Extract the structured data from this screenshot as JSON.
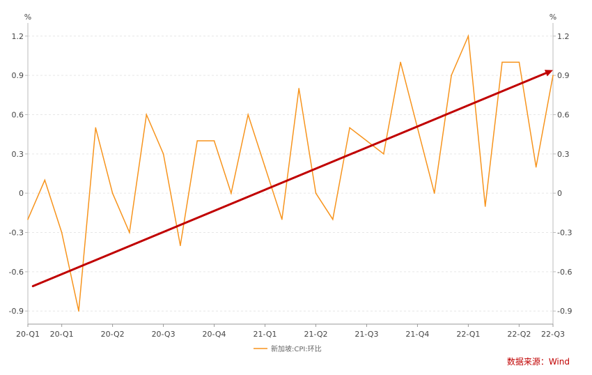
{
  "chart_data": {
    "type": "line",
    "title": "",
    "xlabel": "",
    "ylabel": "%",
    "y_unit_left": "%",
    "y_unit_right": "%",
    "ylim": [
      -1.0,
      1.3
    ],
    "y_ticks": [
      "1.2",
      "0.9",
      "0.6",
      "0.3",
      "0",
      "-0.3",
      "-0.6",
      "-0.9"
    ],
    "y_tick_values": [
      1.2,
      0.9,
      0.6,
      0.3,
      0,
      -0.3,
      -0.6,
      -0.9
    ],
    "x_tick_labels": [
      "20-Q1",
      "20-Q1",
      "20-Q2",
      "20-Q3",
      "20-Q4",
      "21-Q1",
      "21-Q2",
      "21-Q3",
      "21-Q4",
      "22-Q1",
      "22-Q2",
      "22-Q3"
    ],
    "x_tick_index": [
      0,
      2,
      5,
      8,
      11,
      14,
      17,
      20,
      23,
      26,
      29,
      31
    ],
    "series": [
      {
        "name": "新加坡:CPI:环比",
        "color": "#F7941D",
        "values": [
          -0.2,
          0.1,
          -0.3,
          -0.9,
          0.5,
          0.0,
          -0.3,
          0.6,
          0.3,
          -0.4,
          0.4,
          0.4,
          0.0,
          0.6,
          0.2,
          -0.2,
          0.8,
          0.0,
          -0.2,
          0.5,
          0.4,
          0.3,
          1.0,
          0.5,
          0.0,
          0.9,
          1.2,
          -0.1,
          1.0,
          1.0,
          0.2,
          0.9
        ]
      }
    ],
    "trend_arrow": {
      "color": "#C00000",
      "start": [
        0.3,
        -0.71
      ],
      "end": [
        31.0,
        0.94
      ]
    },
    "grid": true,
    "legend_position": "bottom-center"
  },
  "legend": {
    "label": "新加坡:CPI:环比"
  },
  "source": {
    "text": "数据来源：Wind"
  }
}
